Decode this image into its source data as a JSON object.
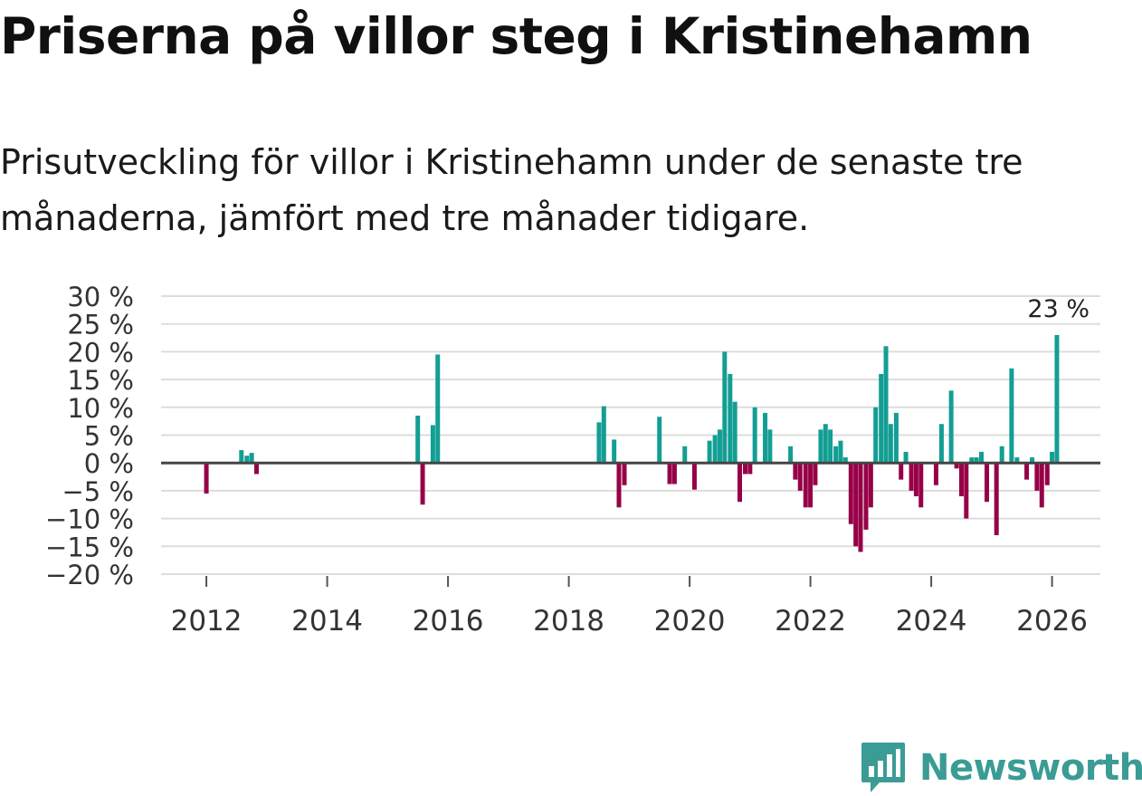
{
  "header": {
    "title": "Priserna på villor steg i Kristinehamn",
    "subtitle": "Prisutveckling för villor i Kristinehamn under de senaste tre månaderna, jämfört med tre månader tidigare."
  },
  "brand": {
    "name": "Newsworthy",
    "logo_icon": "bar-chart-speech-bubble-icon"
  },
  "colors": {
    "positive": "#139e94",
    "negative": "#970047",
    "grid": "#dddddd",
    "zero_line": "#444444",
    "brand": "#3a9c94"
  },
  "chart_data": {
    "type": "bar",
    "title": "Priserna på villor steg i Kristinehamn",
    "xlabel": "",
    "ylabel": "",
    "ylim": [
      -20,
      30
    ],
    "yticks": [
      {
        "value": 30,
        "label": "30 %"
      },
      {
        "value": 25,
        "label": "25 %"
      },
      {
        "value": 20,
        "label": "20 %"
      },
      {
        "value": 15,
        "label": "15 %"
      },
      {
        "value": 10,
        "label": "10 %"
      },
      {
        "value": 5,
        "label": "5 %"
      },
      {
        "value": 0,
        "label": "0 %"
      },
      {
        "value": -5,
        "label": "−5 %"
      },
      {
        "value": -10,
        "label": "−10 %"
      },
      {
        "value": -15,
        "label": "−15 %"
      },
      {
        "value": -20,
        "label": "−20 %"
      }
    ],
    "xlim": [
      2011.25,
      2026.8
    ],
    "xticks": [
      {
        "value": 2012,
        "label": "2012"
      },
      {
        "value": 2014,
        "label": "2014"
      },
      {
        "value": 2016,
        "label": "2016"
      },
      {
        "value": 2018,
        "label": "2018"
      },
      {
        "value": 2020,
        "label": "2020"
      },
      {
        "value": 2022,
        "label": "2022"
      },
      {
        "value": 2024,
        "label": "2024"
      },
      {
        "value": 2026,
        "label": "2026"
      }
    ],
    "grid": true,
    "last_label": "23 %",
    "series": [
      {
        "name": "Prisutveckling",
        "points": [
          {
            "x": 2012.0,
            "y": -5.5
          },
          {
            "x": 2012.58,
            "y": 2.3
          },
          {
            "x": 2012.67,
            "y": 1.3
          },
          {
            "x": 2012.75,
            "y": 1.8
          },
          {
            "x": 2012.83,
            "y": -2.0
          },
          {
            "x": 2015.5,
            "y": 8.5
          },
          {
            "x": 2015.58,
            "y": -7.5
          },
          {
            "x": 2015.75,
            "y": 6.8
          },
          {
            "x": 2015.83,
            "y": 19.5
          },
          {
            "x": 2018.5,
            "y": 7.3
          },
          {
            "x": 2018.58,
            "y": 10.2
          },
          {
            "x": 2018.75,
            "y": 4.2
          },
          {
            "x": 2018.83,
            "y": -8.0
          },
          {
            "x": 2018.92,
            "y": -4.0
          },
          {
            "x": 2019.5,
            "y": 8.3
          },
          {
            "x": 2019.67,
            "y": -3.8
          },
          {
            "x": 2019.75,
            "y": -3.8
          },
          {
            "x": 2019.92,
            "y": 3.0
          },
          {
            "x": 2020.08,
            "y": -4.8
          },
          {
            "x": 2020.33,
            "y": 4.0
          },
          {
            "x": 2020.42,
            "y": 5.0
          },
          {
            "x": 2020.5,
            "y": 6.0
          },
          {
            "x": 2020.58,
            "y": 20.0
          },
          {
            "x": 2020.67,
            "y": 16.0
          },
          {
            "x": 2020.75,
            "y": 11.0
          },
          {
            "x": 2020.83,
            "y": -7.0
          },
          {
            "x": 2020.92,
            "y": -2.0
          },
          {
            "x": 2021.0,
            "y": -2.0
          },
          {
            "x": 2021.08,
            "y": 10.0
          },
          {
            "x": 2021.25,
            "y": 9.0
          },
          {
            "x": 2021.33,
            "y": 6.0
          },
          {
            "x": 2021.67,
            "y": 3.0
          },
          {
            "x": 2021.75,
            "y": -3.0
          },
          {
            "x": 2021.83,
            "y": -5.0
          },
          {
            "x": 2021.92,
            "y": -8.0
          },
          {
            "x": 2022.0,
            "y": -8.0
          },
          {
            "x": 2022.08,
            "y": -4.0
          },
          {
            "x": 2022.17,
            "y": 6.0
          },
          {
            "x": 2022.25,
            "y": 7.0
          },
          {
            "x": 2022.33,
            "y": 6.0
          },
          {
            "x": 2022.42,
            "y": 3.0
          },
          {
            "x": 2022.5,
            "y": 4.0
          },
          {
            "x": 2022.58,
            "y": 1.0
          },
          {
            "x": 2022.67,
            "y": -11.0
          },
          {
            "x": 2022.75,
            "y": -15.0
          },
          {
            "x": 2022.83,
            "y": -16.0
          },
          {
            "x": 2022.92,
            "y": -12.0
          },
          {
            "x": 2023.0,
            "y": -8.0
          },
          {
            "x": 2023.08,
            "y": 10.0
          },
          {
            "x": 2023.17,
            "y": 16.0
          },
          {
            "x": 2023.25,
            "y": 21.0
          },
          {
            "x": 2023.33,
            "y": 7.0
          },
          {
            "x": 2023.42,
            "y": 9.0
          },
          {
            "x": 2023.5,
            "y": -3.0
          },
          {
            "x": 2023.58,
            "y": 2.0
          },
          {
            "x": 2023.67,
            "y": -5.0
          },
          {
            "x": 2023.75,
            "y": -6.0
          },
          {
            "x": 2023.83,
            "y": -8.0
          },
          {
            "x": 2024.08,
            "y": -4.0
          },
          {
            "x": 2024.17,
            "y": 7.0
          },
          {
            "x": 2024.33,
            "y": 13.0
          },
          {
            "x": 2024.42,
            "y": -1.0
          },
          {
            "x": 2024.5,
            "y": -6.0
          },
          {
            "x": 2024.58,
            "y": -10.0
          },
          {
            "x": 2024.67,
            "y": 1.0
          },
          {
            "x": 2024.75,
            "y": 1.0
          },
          {
            "x": 2024.83,
            "y": 2.0
          },
          {
            "x": 2024.92,
            "y": -7.0
          },
          {
            "x": 2025.08,
            "y": -13.0
          },
          {
            "x": 2025.17,
            "y": 3.0
          },
          {
            "x": 2025.33,
            "y": 17.0
          },
          {
            "x": 2025.42,
            "y": 1.0
          },
          {
            "x": 2025.58,
            "y": -3.0
          },
          {
            "x": 2025.67,
            "y": 1.0
          },
          {
            "x": 2025.75,
            "y": -5.0
          },
          {
            "x": 2025.83,
            "y": -8.0
          },
          {
            "x": 2025.92,
            "y": -4.0
          },
          {
            "x": 2026.0,
            "y": 2.0
          },
          {
            "x": 2026.08,
            "y": 23.0
          }
        ]
      }
    ]
  }
}
